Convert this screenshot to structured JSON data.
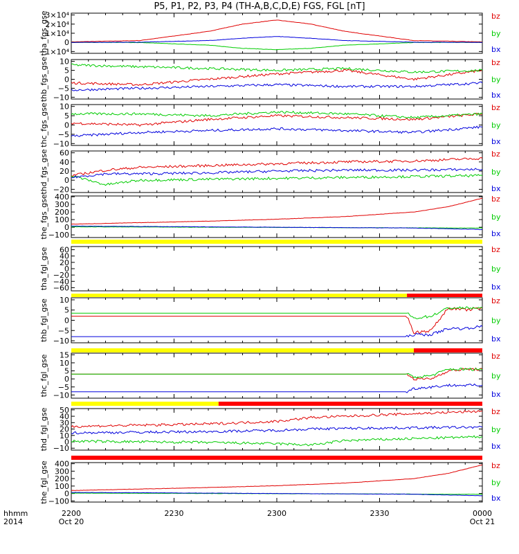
{
  "title": "P5, P1, P2, P3, P4 (TH-A,B,C,D,E) FGS, FGL [nT]",
  "x_axis": {
    "row_labels": [
      "hhmm",
      "2014"
    ],
    "ticks": [
      "2200",
      "2230",
      "2300",
      "2330",
      "0000"
    ],
    "dates": [
      "Oct 20",
      "Oct 21"
    ]
  },
  "colors": {
    "bz": "#e00000",
    "by": "#00cc00",
    "bx": "#0000dd",
    "yellow": "#ffff00",
    "red_bar": "#ff0000"
  },
  "chart_data": [
    {
      "type": "line",
      "ylabel": "tha_fgs_gse",
      "yticks": [
        "3×10⁴",
        "2×10⁴",
        "1×10⁴",
        "0",
        "−1×10⁴"
      ],
      "ylim": [
        -12000,
        32000
      ],
      "legend": [
        "bz",
        "by",
        "bx"
      ],
      "x": [
        "22:00",
        "22:20",
        "22:40",
        "22:50",
        "23:00",
        "23:10",
        "23:20",
        "23:40",
        "00:00"
      ],
      "series": [
        {
          "name": "bz",
          "values": [
            500,
            2000,
            12000,
            20000,
            24500,
            20000,
            12000,
            2000,
            500
          ]
        },
        {
          "name": "by",
          "values": [
            0,
            -200,
            -3000,
            -6500,
            -8000,
            -6500,
            -3000,
            -200,
            0
          ]
        },
        {
          "name": "bx",
          "values": [
            0,
            200,
            2000,
            4500,
            6500,
            4500,
            2000,
            200,
            0
          ]
        }
      ]
    },
    {
      "type": "line",
      "ylabel": "thb_fgs_gse",
      "yticks": [
        "10",
        "5",
        "0",
        "−5",
        "−10"
      ],
      "ylim": [
        -11,
        11
      ],
      "legend": [
        "bz",
        "by",
        "bx"
      ],
      "x": [
        "22:00",
        "22:20",
        "22:40",
        "23:00",
        "23:20",
        "23:40",
        "00:00"
      ],
      "series": [
        {
          "name": "bz",
          "values": [
            -2,
            -3,
            0,
            3,
            5,
            0,
            5
          ]
        },
        {
          "name": "by",
          "values": [
            8,
            7,
            6,
            5,
            6,
            4,
            5
          ]
        },
        {
          "name": "bx",
          "values": [
            -6,
            -5,
            -4,
            -3,
            -4,
            -4,
            -2
          ]
        }
      ]
    },
    {
      "type": "line",
      "ylabel": "thc_fgs_gse",
      "yticks": [
        "10",
        "5",
        "0",
        "−5",
        "−10"
      ],
      "ylim": [
        -11,
        11
      ],
      "legend": [
        "bz",
        "by",
        "bx"
      ],
      "x": [
        "22:00",
        "22:20",
        "22:40",
        "23:00",
        "23:20",
        "23:40",
        "00:00"
      ],
      "series": [
        {
          "name": "bz",
          "values": [
            1,
            0,
            3,
            5,
            4,
            3,
            6
          ]
        },
        {
          "name": "by",
          "values": [
            6,
            6,
            5,
            7,
            6,
            4,
            6
          ]
        },
        {
          "name": "bx",
          "values": [
            -6,
            -4,
            -3,
            -2,
            -3,
            -4,
            -1
          ]
        }
      ]
    },
    {
      "type": "line",
      "ylabel": "thd_fgs_gse",
      "yticks": [
        "60",
        "40",
        "20",
        "0",
        "−20"
      ],
      "ylim": [
        -27,
        64
      ],
      "legend": [
        "bz",
        "by",
        "bx"
      ],
      "x": [
        "22:00",
        "22:10",
        "22:20",
        "22:40",
        "23:00",
        "23:20",
        "23:40",
        "00:00"
      ],
      "series": [
        {
          "name": "bz",
          "values": [
            10,
            22,
            28,
            32,
            36,
            40,
            42,
            48
          ]
        },
        {
          "name": "by",
          "values": [
            10,
            -10,
            0,
            2,
            4,
            6,
            8,
            10
          ]
        },
        {
          "name": "bx",
          "values": [
            6,
            14,
            14,
            16,
            20,
            22,
            22,
            24
          ]
        }
      ]
    },
    {
      "type": "line",
      "ylabel": "the_fgs_gse",
      "yticks": [
        "400",
        "300",
        "200",
        "100",
        "0",
        "−100"
      ],
      "ylim": [
        -135,
        410
      ],
      "legend": [
        "bz",
        "by",
        "bx"
      ],
      "x": [
        "22:00",
        "22:20",
        "22:40",
        "23:00",
        "23:20",
        "23:40",
        "23:50",
        "00:00"
      ],
      "series": [
        {
          "name": "bz",
          "values": [
            40,
            60,
            80,
            105,
            140,
            200,
            270,
            380
          ]
        },
        {
          "name": "by",
          "values": [
            5,
            3,
            0,
            -2,
            -5,
            -8,
            -10,
            -10
          ]
        },
        {
          "name": "bx",
          "values": [
            15,
            10,
            5,
            0,
            -5,
            -10,
            -20,
            -30
          ]
        }
      ]
    },
    {
      "type": "line",
      "ylabel": "tha_fgl_gse",
      "yticks": [
        "60",
        "40",
        "20",
        "0",
        "−20",
        "−40",
        "−60"
      ],
      "ylim": [
        -70,
        70
      ],
      "legend": [
        "bz",
        "by",
        "bx"
      ],
      "x": [],
      "series": []
    },
    {
      "type": "line",
      "ylabel": "thb_fgl_gse",
      "yticks": [
        "10",
        "5",
        "0",
        "−5",
        "−10"
      ],
      "ylim": [
        -11,
        11
      ],
      "legend": [
        "bz",
        "by",
        "bx"
      ],
      "x": [
        "22:00",
        "23:38",
        "23:40",
        "23:45",
        "23:50",
        "23:55",
        "00:00"
      ],
      "series": [
        {
          "name": "bz",
          "values": [
            2,
            2,
            -6,
            -5,
            6,
            5,
            6
          ]
        },
        {
          "name": "by",
          "values": [
            3.5,
            3.5,
            1,
            2,
            6,
            6,
            6
          ]
        },
        {
          "name": "bx",
          "values": [
            -8,
            -8,
            -7,
            -7,
            -4,
            -4,
            -3
          ]
        }
      ]
    },
    {
      "type": "line",
      "ylabel": "thc_fgl_gse",
      "yticks": [
        "15",
        "10",
        "5",
        "0",
        "−5",
        "−10"
      ],
      "ylim": [
        -12,
        16
      ],
      "legend": [
        "bz",
        "by",
        "bx"
      ],
      "x": [
        "22:00",
        "23:38",
        "23:40",
        "23:45",
        "23:50",
        "23:55",
        "00:00"
      ],
      "series": [
        {
          "name": "bz",
          "values": [
            3,
            3,
            0,
            0,
            5,
            6,
            6
          ]
        },
        {
          "name": "by",
          "values": [
            3,
            3,
            1,
            2,
            6,
            6,
            6
          ]
        },
        {
          "name": "bx",
          "values": [
            -8,
            -8,
            -6,
            -5,
            -4,
            -4,
            -4
          ]
        }
      ]
    },
    {
      "type": "line",
      "ylabel": "thd_fgl_gse",
      "yticks": [
        "50",
        "40",
        "30",
        "20",
        "10",
        "0",
        "−10"
      ],
      "ylim": [
        -13,
        52
      ],
      "legend": [
        "bz",
        "by",
        "bx"
      ],
      "x": [
        "22:00",
        "22:20",
        "22:40",
        "23:00",
        "23:10",
        "23:20",
        "23:40",
        "00:00"
      ],
      "series": [
        {
          "name": "bz",
          "values": [
            24,
            26,
            28,
            32,
            38,
            40,
            44,
            48
          ]
        },
        {
          "name": "by",
          "values": [
            1,
            0,
            -1,
            -3,
            -5,
            2,
            5,
            8
          ]
        },
        {
          "name": "bx",
          "values": [
            14,
            15,
            16,
            18,
            20,
            21,
            22,
            23
          ]
        }
      ]
    },
    {
      "type": "line",
      "ylabel": "the_fgl_gse",
      "yticks": [
        "400",
        "300",
        "200",
        "100",
        "0",
        "−100"
      ],
      "ylim": [
        -115,
        415
      ],
      "legend": [
        "bz",
        "by",
        "bx"
      ],
      "x": [
        "22:00",
        "22:20",
        "22:40",
        "23:00",
        "23:20",
        "23:40",
        "23:50",
        "00:00"
      ],
      "series": [
        {
          "name": "bz",
          "values": [
            40,
            60,
            80,
            105,
            140,
            200,
            270,
            385
          ]
        },
        {
          "name": "by",
          "values": [
            5,
            3,
            0,
            -2,
            -5,
            -8,
            -10,
            -10
          ]
        },
        {
          "name": "bx",
          "values": [
            15,
            10,
            5,
            0,
            -5,
            -10,
            -20,
            -30
          ]
        }
      ]
    }
  ],
  "mode_bars": [
    {
      "segments": [
        {
          "color": "yellow",
          "from": "22:00",
          "to": "00:00"
        }
      ]
    },
    {
      "segments": [
        {
          "color": "yellow",
          "from": "22:00",
          "to": "23:38"
        },
        {
          "color": "red_bar",
          "from": "23:38",
          "to": "00:00"
        }
      ]
    },
    {
      "segments": [
        {
          "color": "yellow",
          "from": "22:00",
          "to": "23:40"
        },
        {
          "color": "red_bar",
          "from": "23:40",
          "to": "00:00"
        }
      ]
    },
    {
      "segments": [
        {
          "color": "yellow",
          "from": "22:00",
          "to": "22:43"
        },
        {
          "color": "red_bar",
          "from": "22:43",
          "to": "00:00"
        }
      ]
    },
    {
      "segments": [
        {
          "color": "red_bar",
          "from": "22:00",
          "to": "00:00"
        }
      ]
    }
  ]
}
